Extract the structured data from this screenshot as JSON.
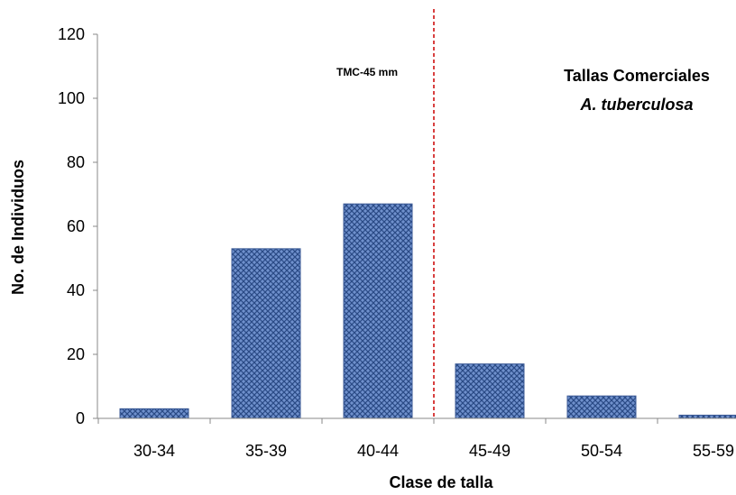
{
  "chart_data": {
    "type": "bar",
    "categories": [
      "30-34",
      "35-39",
      "40-44",
      "45-49",
      "50-54",
      "55-59"
    ],
    "values": [
      3,
      53,
      67,
      17,
      7,
      1
    ],
    "xlabel": "Clase de talla",
    "ylabel": "No. de Individuos",
    "ylim": [
      0,
      120
    ],
    "yticks": [
      0,
      20,
      40,
      60,
      80,
      100,
      120
    ],
    "grid": false,
    "bar_color": "#5b7fbf",
    "bar_pattern_color": "#1f3a6e",
    "reference_line": {
      "between_categories": [
        "40-44",
        "45-49"
      ],
      "color": "#cc0000",
      "style": "dashed",
      "label": "TMC-45 mm"
    },
    "annotation": {
      "line1": "Tallas Comerciales",
      "line2": "A. tuberculosa"
    }
  }
}
